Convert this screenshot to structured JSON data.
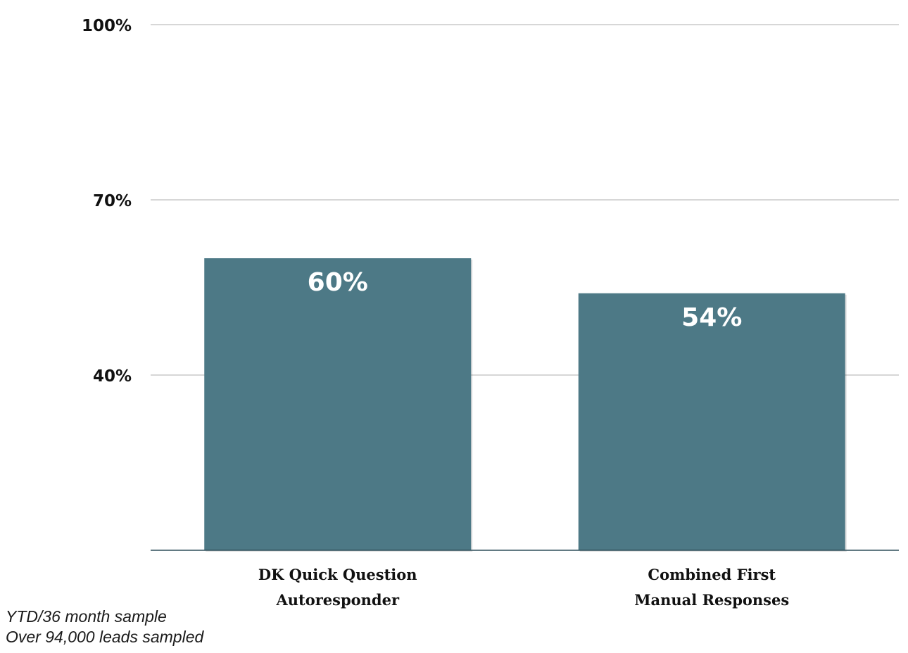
{
  "chart_data": {
    "type": "bar",
    "categories": [
      [
        "DK Quick Question",
        "Autoresponder"
      ],
      [
        "Combined First",
        "Manual Responses"
      ]
    ],
    "values": [
      60,
      54
    ],
    "data_labels": [
      "60%",
      "54%"
    ],
    "ylim": [
      10,
      100
    ],
    "yticks": [
      40,
      70,
      100
    ],
    "ytick_labels": [
      "40%",
      "70%",
      "100%"
    ],
    "grid": true,
    "legend": "none",
    "colors": {
      "bar": "#4d7986",
      "grid": "#bfbfbf",
      "baseline": "#2f4f5a",
      "text": "#111111",
      "data_label": "#ffffff"
    }
  },
  "notes": [
    "YTD/36 month sample",
    "Over 94,000 leads sampled"
  ]
}
